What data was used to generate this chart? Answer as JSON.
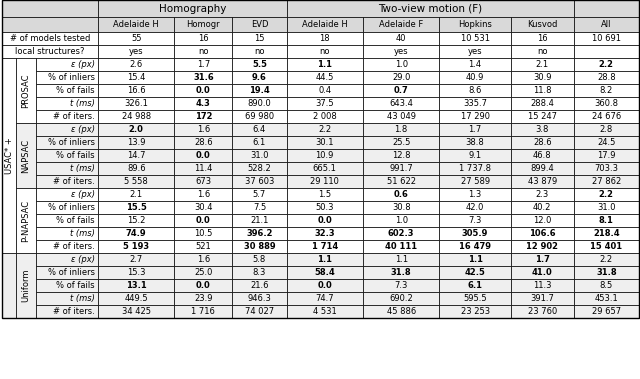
{
  "col_headers": [
    "Adelaide H",
    "Homogr",
    "EVD",
    "Adelaide H",
    "Adelaide F",
    "Hopkins",
    "Kusvod",
    "All"
  ],
  "row_models_tested": [
    "55",
    "16",
    "15",
    "18",
    "40",
    "10 531",
    "16",
    "10 691"
  ],
  "row_local_structures": [
    "yes",
    "no",
    "no",
    "no",
    "yes",
    "yes",
    "no",
    ""
  ],
  "methods": [
    "PROSAC",
    "NAPSAC",
    "P-NAPSAC",
    "Uniform"
  ],
  "row_labels": [
    "ε (px)",
    "% of inliers",
    "% of fails",
    "t (ms)",
    "# of iters."
  ],
  "data": {
    "PROSAC": [
      [
        "2.6",
        "1.7",
        "5.5",
        "1.1",
        "1.0",
        "1.4",
        "2.1",
        "2.2"
      ],
      [
        "15.4",
        "31.6",
        "9.6",
        "44.5",
        "29.0",
        "40.9",
        "30.9",
        "28.8"
      ],
      [
        "16.6",
        "0.0",
        "19.4",
        "0.4",
        "0.7",
        "8.6",
        "11.8",
        "8.2"
      ],
      [
        "326.1",
        "4.3",
        "890.0",
        "37.5",
        "643.4",
        "335.7",
        "288.4",
        "360.8"
      ],
      [
        "24 988",
        "172",
        "69 980",
        "2 008",
        "43 049",
        "17 290",
        "15 247",
        "24 676"
      ]
    ],
    "NAPSAC": [
      [
        "2.0",
        "1.6",
        "6.4",
        "2.2",
        "1.8",
        "1.7",
        "3.8",
        "2.8"
      ],
      [
        "13.9",
        "28.6",
        "6.1",
        "30.1",
        "25.5",
        "38.8",
        "28.6",
        "24.5"
      ],
      [
        "14.7",
        "0.0",
        "31.0",
        "10.9",
        "12.8",
        "9.1",
        "46.8",
        "17.9"
      ],
      [
        "89.6",
        "11.4",
        "528.2",
        "665.1",
        "991.7",
        "1 737.8",
        "899.4",
        "703.3"
      ],
      [
        "5 558",
        "673",
        "37 603",
        "29 110",
        "51 622",
        "27 589",
        "43 879",
        "27 862"
      ]
    ],
    "P-NAPSAC": [
      [
        "2.1",
        "1.6",
        "5.7",
        "1.5",
        "0.6",
        "1.3",
        "2.3",
        "2.2"
      ],
      [
        "15.5",
        "30.4",
        "7.5",
        "50.3",
        "30.8",
        "42.0",
        "40.2",
        "31.0"
      ],
      [
        "15.2",
        "0.0",
        "21.1",
        "0.0",
        "1.0",
        "7.3",
        "12.0",
        "8.1"
      ],
      [
        "74.9",
        "10.5",
        "396.2",
        "32.3",
        "602.3",
        "305.9",
        "106.6",
        "218.4"
      ],
      [
        "5 193",
        "521",
        "30 889",
        "1 714",
        "40 111",
        "16 479",
        "12 902",
        "15 401"
      ]
    ],
    "Uniform": [
      [
        "2.7",
        "1.6",
        "5.8",
        "1.1",
        "1.1",
        "1.1",
        "1.7",
        "2.2"
      ],
      [
        "15.3",
        "25.0",
        "8.3",
        "58.4",
        "31.8",
        "42.5",
        "41.0",
        "31.8"
      ],
      [
        "13.1",
        "0.0",
        "21.6",
        "0.0",
        "7.3",
        "6.1",
        "11.3",
        "8.5"
      ],
      [
        "449.5",
        "23.9",
        "946.3",
        "74.7",
        "690.2",
        "595.5",
        "391.7",
        "453.1"
      ],
      [
        "34 425",
        "1 716",
        "74 027",
        "4 531",
        "45 886",
        "23 253",
        "23 760",
        "29 657"
      ]
    ]
  },
  "bold": {
    "PROSAC": [
      [
        false,
        false,
        true,
        true,
        false,
        false,
        false,
        true
      ],
      [
        false,
        true,
        true,
        false,
        false,
        false,
        false,
        false
      ],
      [
        false,
        true,
        true,
        false,
        true,
        false,
        false,
        false
      ],
      [
        false,
        true,
        false,
        false,
        false,
        false,
        false,
        false
      ],
      [
        false,
        true,
        false,
        false,
        false,
        false,
        false,
        false
      ]
    ],
    "NAPSAC": [
      [
        true,
        false,
        false,
        false,
        false,
        false,
        false,
        false
      ],
      [
        false,
        false,
        false,
        false,
        false,
        false,
        false,
        false
      ],
      [
        false,
        true,
        false,
        false,
        false,
        false,
        false,
        false
      ],
      [
        false,
        false,
        false,
        false,
        false,
        false,
        false,
        false
      ],
      [
        false,
        false,
        false,
        false,
        false,
        false,
        false,
        false
      ]
    ],
    "P-NAPSAC": [
      [
        false,
        false,
        false,
        false,
        true,
        false,
        false,
        true
      ],
      [
        true,
        false,
        false,
        false,
        false,
        false,
        false,
        false
      ],
      [
        false,
        true,
        false,
        true,
        false,
        false,
        false,
        true
      ],
      [
        true,
        false,
        true,
        true,
        true,
        true,
        true,
        true
      ],
      [
        true,
        false,
        true,
        true,
        true,
        true,
        true,
        true
      ]
    ],
    "Uniform": [
      [
        false,
        false,
        false,
        true,
        false,
        true,
        true,
        false
      ],
      [
        false,
        false,
        false,
        true,
        true,
        true,
        true,
        true
      ],
      [
        true,
        true,
        false,
        true,
        false,
        true,
        false,
        false
      ],
      [
        false,
        false,
        false,
        false,
        false,
        false,
        false,
        false
      ],
      [
        false,
        false,
        false,
        false,
        false,
        false,
        false,
        false
      ]
    ]
  },
  "bg_header": "#d9d9d9",
  "bg_white": "#ffffff",
  "bg_light": "#efefef",
  "border_color": "#000000",
  "usac_label": "USAC* +",
  "homography_label": "Homography",
  "twov_label": "Two-view motion (F)",
  "models_label": "# of models tested",
  "local_label": "local structures?",
  "italic_rows": [
    0,
    3
  ]
}
